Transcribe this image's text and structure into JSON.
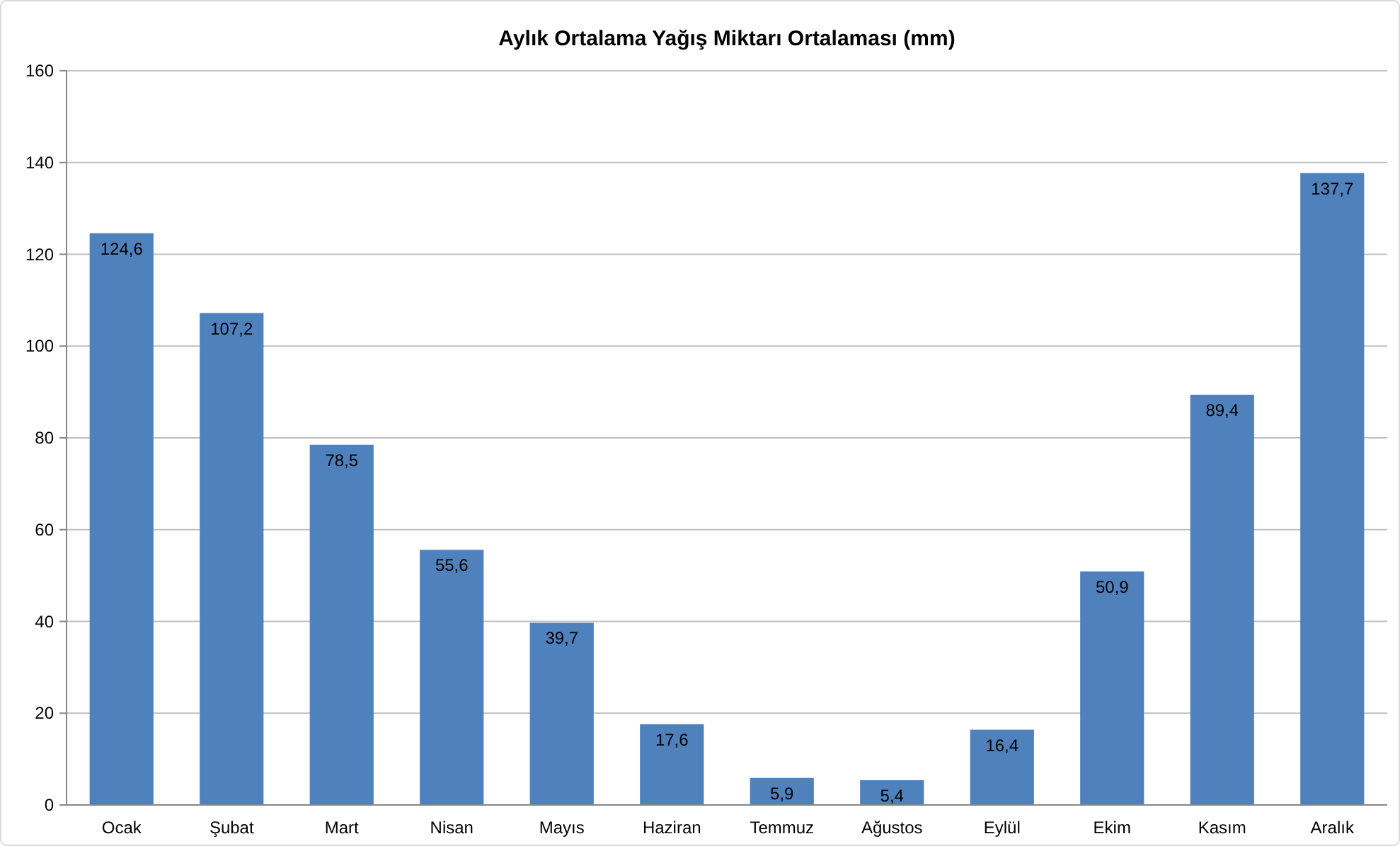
{
  "chart_data": {
    "type": "bar",
    "title": "Aylık Ortalama Yağış Miktarı Ortalaması (mm)",
    "categories": [
      "Ocak",
      "Şubat",
      "Mart",
      "Nisan",
      "Mayıs",
      "Haziran",
      "Temmuz",
      "Ağustos",
      "Eylül",
      "Ekim",
      "Kasım",
      "Aralık"
    ],
    "values": [
      124.6,
      107.2,
      78.5,
      55.6,
      39.7,
      17.6,
      5.9,
      5.4,
      16.4,
      50.9,
      89.4,
      137.7
    ],
    "value_labels": [
      "124,6",
      "107,2",
      "78,5",
      "55,6",
      "39,7",
      "17,6",
      "5,9",
      "5,4",
      "16,4",
      "50,9",
      "89,4",
      "137,7"
    ],
    "color": "#4f81bd",
    "ylim": [
      0,
      160
    ],
    "yticks": [
      0,
      20,
      40,
      60,
      80,
      100,
      120,
      140,
      160
    ],
    "grid": "y"
  }
}
